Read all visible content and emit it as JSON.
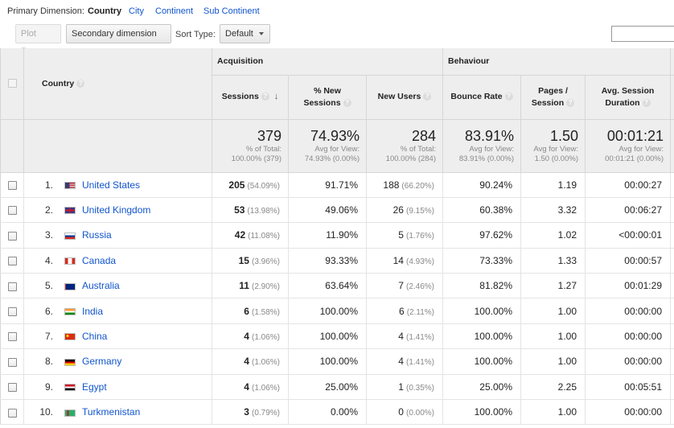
{
  "primary_dimension": {
    "label": "Primary Dimension:",
    "current": "Country",
    "options": [
      "City",
      "Continent",
      "Sub Continent"
    ]
  },
  "toolbar": {
    "plot_rows": "Plot Rows",
    "secondary_dimension": "Secondary dimension",
    "sort_type_label": "Sort Type:",
    "sort_type_value": "Default"
  },
  "table": {
    "country_header": "Country",
    "groups": {
      "acquisition": "Acquisition",
      "behaviour": "Behaviour"
    },
    "columns": {
      "sessions": "Sessions",
      "new_sessions_1": "% New",
      "new_sessions_2": "Sessions",
      "new_users": "New Users",
      "bounce_rate": "Bounce Rate",
      "pages_1": "Pages /",
      "pages_2": "Session",
      "duration_1": "Avg. Session",
      "duration_2": "Duration"
    },
    "totals": {
      "sessions": {
        "value": "379",
        "line1": "% of Total:",
        "line2": "100.00% (379)"
      },
      "new_sessions": {
        "value": "74.93%",
        "line1": "Avg for View:",
        "line2": "74.93% (0.00%)"
      },
      "new_users": {
        "value": "284",
        "line1": "% of Total:",
        "line2": "100.00% (284)"
      },
      "bounce_rate": {
        "value": "83.91%",
        "line1": "Avg for View:",
        "line2": "83.91% (0.00%)"
      },
      "pages": {
        "value": "1.50",
        "line1": "Avg for View:",
        "line2": "1.50 (0.00%)"
      },
      "duration": {
        "value": "00:01:21",
        "line1": "Avg for View:",
        "line2": "00:01:21 (0.00%)"
      }
    },
    "rows": [
      {
        "rank": "1.",
        "country": "United States",
        "flag": "us-flag-icon",
        "sessions": "205",
        "sessions_pct": "(54.09%)",
        "new_sessions": "91.71%",
        "new_users": "188",
        "new_users_pct": "(66.20%)",
        "bounce_rate": "90.24%",
        "pages": "1.19",
        "duration": "00:00:27"
      },
      {
        "rank": "2.",
        "country": "United Kingdom",
        "flag": "uk-flag-icon",
        "sessions": "53",
        "sessions_pct": "(13.98%)",
        "new_sessions": "49.06%",
        "new_users": "26",
        "new_users_pct": "(9.15%)",
        "bounce_rate": "60.38%",
        "pages": "3.32",
        "duration": "00:06:27"
      },
      {
        "rank": "3.",
        "country": "Russia",
        "flag": "russia-flag-icon",
        "sessions": "42",
        "sessions_pct": "(11.08%)",
        "new_sessions": "11.90%",
        "new_users": "5",
        "new_users_pct": "(1.76%)",
        "bounce_rate": "97.62%",
        "pages": "1.02",
        "duration": "<00:00:01"
      },
      {
        "rank": "4.",
        "country": "Canada",
        "flag": "canada-flag-icon",
        "sessions": "15",
        "sessions_pct": "(3.96%)",
        "new_sessions": "93.33%",
        "new_users": "14",
        "new_users_pct": "(4.93%)",
        "bounce_rate": "73.33%",
        "pages": "1.33",
        "duration": "00:00:57"
      },
      {
        "rank": "5.",
        "country": "Australia",
        "flag": "australia-flag-icon",
        "sessions": "11",
        "sessions_pct": "(2.90%)",
        "new_sessions": "63.64%",
        "new_users": "7",
        "new_users_pct": "(2.46%)",
        "bounce_rate": "81.82%",
        "pages": "1.27",
        "duration": "00:01:29"
      },
      {
        "rank": "6.",
        "country": "India",
        "flag": "india-flag-icon",
        "sessions": "6",
        "sessions_pct": "(1.58%)",
        "new_sessions": "100.00%",
        "new_users": "6",
        "new_users_pct": "(2.11%)",
        "bounce_rate": "100.00%",
        "pages": "1.00",
        "duration": "00:00:00"
      },
      {
        "rank": "7.",
        "country": "China",
        "flag": "china-flag-icon",
        "sessions": "4",
        "sessions_pct": "(1.06%)",
        "new_sessions": "100.00%",
        "new_users": "4",
        "new_users_pct": "(1.41%)",
        "bounce_rate": "100.00%",
        "pages": "1.00",
        "duration": "00:00:00"
      },
      {
        "rank": "8.",
        "country": "Germany",
        "flag": "germany-flag-icon",
        "sessions": "4",
        "sessions_pct": "(1.06%)",
        "new_sessions": "100.00%",
        "new_users": "4",
        "new_users_pct": "(1.41%)",
        "bounce_rate": "100.00%",
        "pages": "1.00",
        "duration": "00:00:00"
      },
      {
        "rank": "9.",
        "country": "Egypt",
        "flag": "egypt-flag-icon",
        "sessions": "4",
        "sessions_pct": "(1.06%)",
        "new_sessions": "25.00%",
        "new_users": "1",
        "new_users_pct": "(0.35%)",
        "bounce_rate": "25.00%",
        "pages": "2.25",
        "duration": "00:05:51"
      },
      {
        "rank": "10.",
        "country": "Turkmenistan",
        "flag": "turkmenistan-flag-icon",
        "sessions": "3",
        "sessions_pct": "(0.79%)",
        "new_sessions": "0.00%",
        "new_users": "0",
        "new_users_pct": "(0.00%)",
        "bounce_rate": "100.00%",
        "pages": "1.00",
        "duration": "00:00:00"
      }
    ]
  }
}
